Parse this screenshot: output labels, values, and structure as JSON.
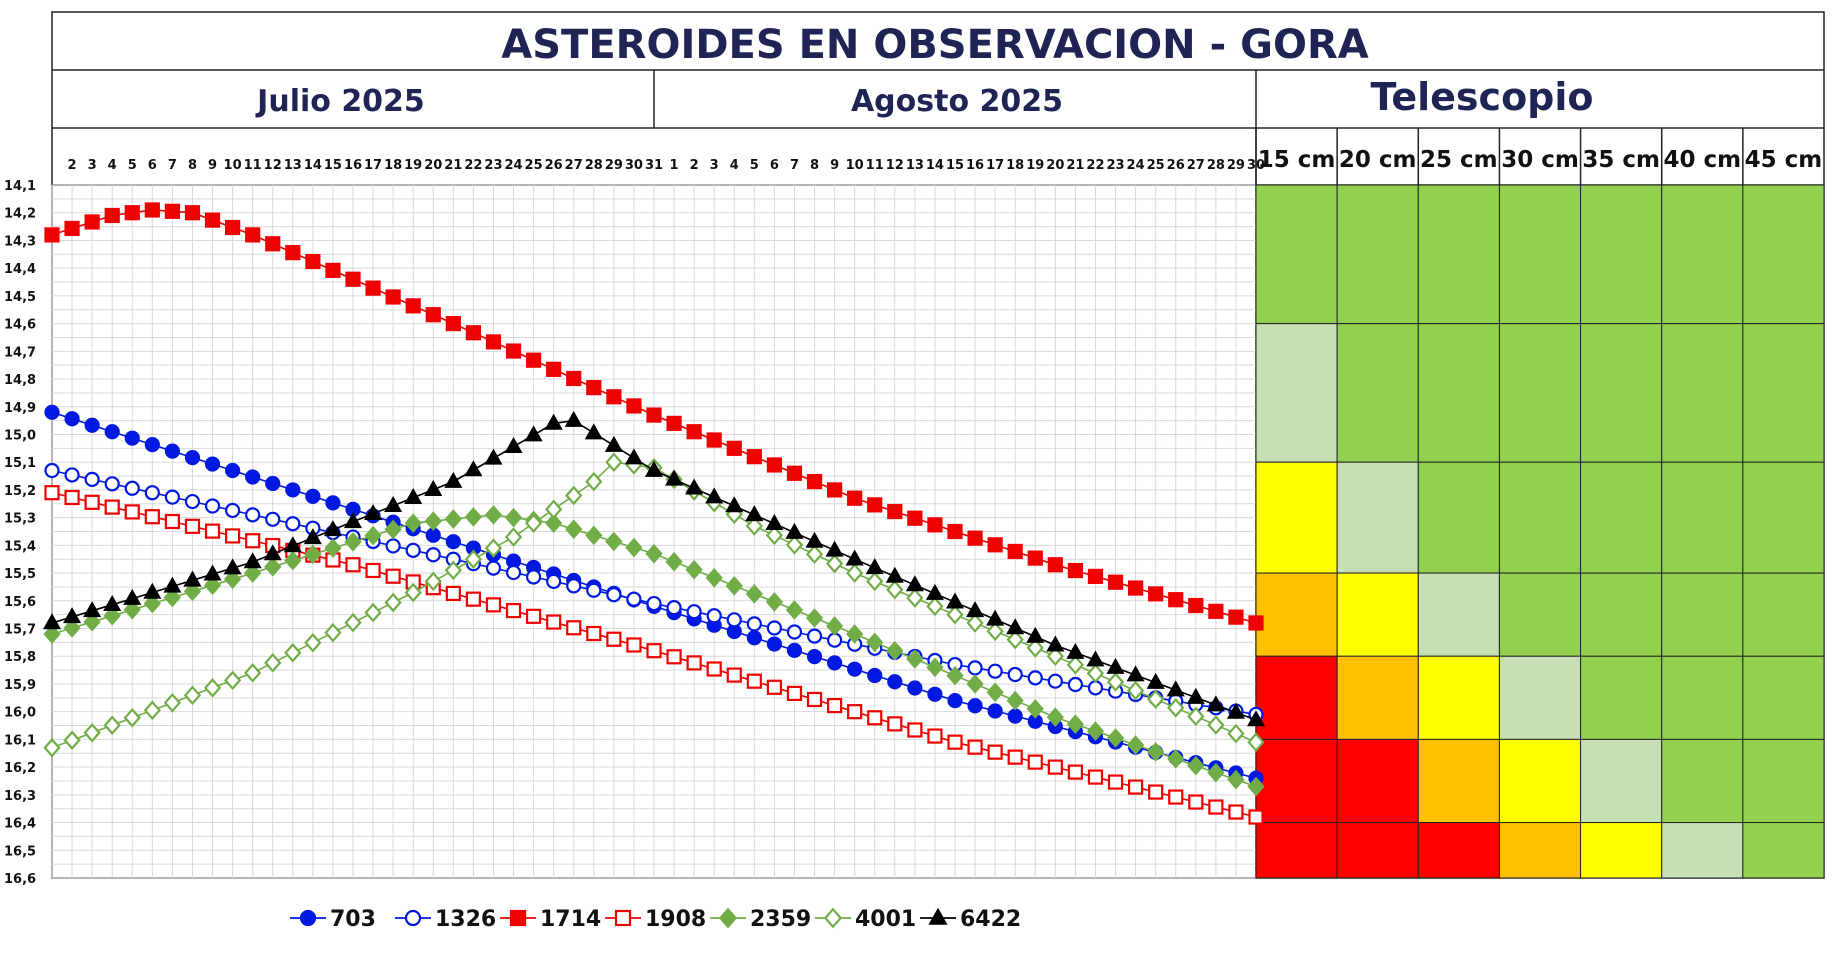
{
  "title": "ASTEROIDES EN OBSERVACION - GORA",
  "months": [
    "Julio 2025",
    "Agosto 2025"
  ],
  "telescope": {
    "header": "Telescopio",
    "columns": [
      "15 cm",
      "20 cm",
      "25 cm",
      "30 cm",
      "35 cm",
      "40 cm",
      "45 cm"
    ],
    "row_ranges": [
      [
        14.1,
        14.6
      ],
      [
        14.6,
        15.1
      ],
      [
        15.1,
        15.5
      ],
      [
        15.5,
        15.8
      ],
      [
        15.8,
        16.1
      ],
      [
        16.1,
        16.4
      ],
      [
        16.4,
        16.6
      ]
    ],
    "level_colors": {
      "0": "#92d050",
      "1": "#c6dfb4",
      "2": "#ffff00",
      "3": "#ffc000",
      "4": "#ff0000"
    },
    "cells": [
      [
        0,
        0,
        0,
        0,
        0,
        0,
        0
      ],
      [
        1,
        0,
        0,
        0,
        0,
        0,
        0
      ],
      [
        2,
        1,
        0,
        0,
        0,
        0,
        0
      ],
      [
        3,
        2,
        1,
        0,
        0,
        0,
        0
      ],
      [
        4,
        3,
        2,
        1,
        0,
        0,
        0
      ],
      [
        4,
        4,
        3,
        2,
        1,
        0,
        0
      ],
      [
        4,
        4,
        4,
        3,
        2,
        1,
        0
      ]
    ]
  },
  "chart_data": {
    "type": "line",
    "x_axis_labels": [
      [
        "2",
        "3",
        "4",
        "5",
        "6",
        "7",
        "8",
        "9",
        "10",
        "11",
        "12",
        "13",
        "14",
        "15",
        "16",
        "17",
        "18",
        "19",
        "20",
        "21",
        "22",
        "23",
        "24",
        "25",
        "26",
        "27",
        "28",
        "29",
        "30",
        "31"
      ],
      [
        "1",
        "2",
        "3",
        "4",
        "5",
        "6",
        "7",
        "8",
        "9",
        "10",
        "11",
        "12",
        "13",
        "14",
        "15",
        "16",
        "17",
        "18",
        "19",
        "20",
        "21",
        "22",
        "23",
        "24",
        "25",
        "26",
        "27",
        "28",
        "29",
        "30"
      ]
    ],
    "x_unit": "days since July 1, 2025",
    "xlim": [
      0,
      60
    ],
    "ylim": [
      14.1,
      16.6
    ],
    "y_inverted": true,
    "y_ticks": [
      "14,1",
      "14,2",
      "14,3",
      "14,4",
      "14,5",
      "14,6",
      "14,7",
      "14,8",
      "14,9",
      "15,0",
      "15,1",
      "15,2",
      "15,3",
      "15,4",
      "15,5",
      "15,6",
      "15,7",
      "15,8",
      "15,9",
      "16,0",
      "16,1",
      "16,2",
      "16,3",
      "16,4",
      "16,5",
      "16,6"
    ],
    "grid": true,
    "legend_position": "bottom",
    "series": [
      {
        "name": "703",
        "marker": "circle",
        "filled": true,
        "color": "#0019e0",
        "points": [
          [
            0,
            14.92
          ],
          [
            15,
            15.27
          ],
          [
            30,
            15.62
          ],
          [
            45,
            15.96
          ],
          [
            60,
            16.24
          ]
        ]
      },
      {
        "name": "1326",
        "marker": "circle",
        "filled": false,
        "color": "#0019e0",
        "points": [
          [
            0,
            15.13
          ],
          [
            15,
            15.37
          ],
          [
            30,
            15.61
          ],
          [
            45,
            15.83
          ],
          [
            60,
            16.01
          ]
        ]
      },
      {
        "name": "1714",
        "marker": "square",
        "filled": true,
        "color": "#ee0000",
        "points": [
          [
            0,
            14.28
          ],
          [
            3,
            14.21
          ],
          [
            5,
            14.19
          ],
          [
            7,
            14.2
          ],
          [
            10,
            14.28
          ],
          [
            20,
            14.6
          ],
          [
            30,
            14.93
          ],
          [
            40,
            15.23
          ],
          [
            50,
            15.47
          ],
          [
            60,
            15.68
          ]
        ]
      },
      {
        "name": "1908",
        "marker": "square",
        "filled": false,
        "color": "#ee0000",
        "points": [
          [
            0,
            15.21
          ],
          [
            15,
            15.47
          ],
          [
            30,
            15.78
          ],
          [
            45,
            16.11
          ],
          [
            60,
            16.38
          ]
        ]
      },
      {
        "name": "2359",
        "marker": "diamond",
        "filled": true,
        "color": "#70ad47",
        "points": [
          [
            0,
            15.72
          ],
          [
            10,
            15.5
          ],
          [
            18,
            15.32
          ],
          [
            22,
            15.29
          ],
          [
            25,
            15.32
          ],
          [
            30,
            15.43
          ],
          [
            40,
            15.72
          ],
          [
            50,
            16.02
          ],
          [
            60,
            16.27
          ]
        ]
      },
      {
        "name": "4001",
        "marker": "diamond",
        "filled": false,
        "color": "#70ad47",
        "points": [
          [
            0,
            16.13
          ],
          [
            10,
            15.86
          ],
          [
            18,
            15.57
          ],
          [
            23,
            15.37
          ],
          [
            27,
            15.17
          ],
          [
            28,
            15.1
          ],
          [
            30,
            15.12
          ],
          [
            35,
            15.33
          ],
          [
            40,
            15.5
          ],
          [
            50,
            15.8
          ],
          [
            60,
            16.11
          ]
        ]
      },
      {
        "name": "6422",
        "marker": "triangle",
        "filled": true,
        "color": "#000000",
        "points": [
          [
            0,
            15.68
          ],
          [
            10,
            15.46
          ],
          [
            20,
            15.17
          ],
          [
            25,
            14.96
          ],
          [
            26,
            14.95
          ],
          [
            28,
            15.04
          ],
          [
            30,
            15.13
          ],
          [
            40,
            15.45
          ],
          [
            50,
            15.76
          ],
          [
            60,
            16.03
          ]
        ]
      }
    ]
  }
}
